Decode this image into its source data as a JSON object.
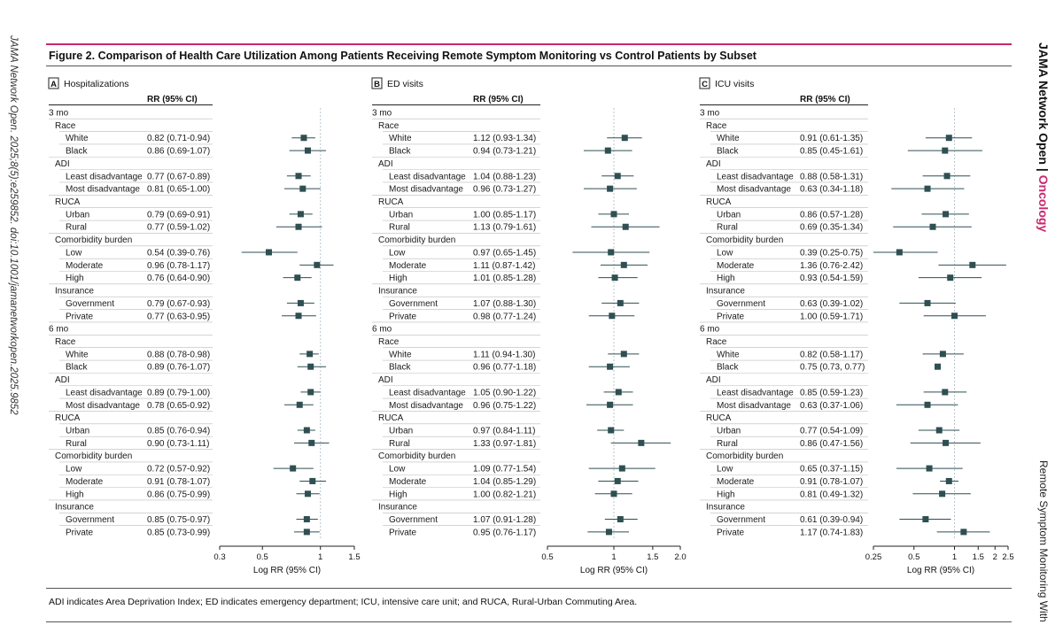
{
  "sidebar_left": "JAMA Network Open. 2025;8(5):e259852. doi:10.1001/jamanetworkopen.2025.9852",
  "sidebar_right": {
    "journal": "JAMA Network Open",
    "separator": "|",
    "section": "Oncology",
    "running_title": "Remote Symptom Monitoring With"
  },
  "figure_title": "Figure 2. Comparison of Health Care Utilization Among Patients Receiving Remote Symptom Monitoring vs Control Patients by Subset",
  "footnote": "ADI indicates Area Deprivation Index; ED indicates emergency department; ICU, intensive care unit; and RUCA, Rural-Urban Commuting Area.",
  "rows": [
    {
      "label": "3 mo",
      "level": 0
    },
    {
      "label": "Race",
      "level": 1
    },
    {
      "label": "White",
      "level": 2
    },
    {
      "label": "Black",
      "level": 2
    },
    {
      "label": "ADI",
      "level": 1
    },
    {
      "label": "Least disadvantage",
      "level": 2
    },
    {
      "label": "Most disadvantage",
      "level": 2
    },
    {
      "label": "RUCA",
      "level": 1
    },
    {
      "label": "Urban",
      "level": 2
    },
    {
      "label": "Rural",
      "level": 2
    },
    {
      "label": "Comorbidity burden",
      "level": 1
    },
    {
      "label": "Low",
      "level": 2
    },
    {
      "label": "Moderate",
      "level": 2
    },
    {
      "label": "High",
      "level": 2
    },
    {
      "label": "Insurance",
      "level": 1
    },
    {
      "label": "Government",
      "level": 2
    },
    {
      "label": "Private",
      "level": 2
    },
    {
      "label": "6 mo",
      "level": 0
    },
    {
      "label": "Race",
      "level": 1
    },
    {
      "label": "White",
      "level": 2
    },
    {
      "label": "Black",
      "level": 2
    },
    {
      "label": "ADI",
      "level": 1
    },
    {
      "label": "Least disadvantage",
      "level": 2
    },
    {
      "label": "Most disadvantage",
      "level": 2
    },
    {
      "label": "RUCA",
      "level": 1
    },
    {
      "label": "Urban",
      "level": 2
    },
    {
      "label": "Rural",
      "level": 2
    },
    {
      "label": "Comorbidity burden",
      "level": 1
    },
    {
      "label": "Low",
      "level": 2
    },
    {
      "label": "Moderate",
      "level": 2
    },
    {
      "label": "High",
      "level": 2
    },
    {
      "label": "Insurance",
      "level": 1
    },
    {
      "label": "Government",
      "level": 2
    },
    {
      "label": "Private",
      "level": 2
    }
  ],
  "chart_data": [
    {
      "type": "forest",
      "panel": "A",
      "title": "Hospitalizations",
      "column_header": "RR (95% CI)",
      "xlabel": "Log RR (95% CI)",
      "scale": "log",
      "xlim": [
        0.3,
        1.5
      ],
      "ticks": [
        0.3,
        0.5,
        1,
        1.5
      ],
      "tick_labels": [
        "0.3",
        "0.5",
        "1",
        "1.5"
      ],
      "reference": 1,
      "values": {
        "2": {
          "text": "0.82 (0.71-0.94)",
          "rr": 0.82,
          "lo": 0.71,
          "hi": 0.94
        },
        "3": {
          "text": "0.86 (0.69-1.07)",
          "rr": 0.86,
          "lo": 0.69,
          "hi": 1.07
        },
        "5": {
          "text": "0.77 (0.67-0.89)",
          "rr": 0.77,
          "lo": 0.67,
          "hi": 0.89
        },
        "6": {
          "text": "0.81 (0.65-1.00)",
          "rr": 0.81,
          "lo": 0.65,
          "hi": 1.0
        },
        "8": {
          "text": "0.79 (0.69-0.91)",
          "rr": 0.79,
          "lo": 0.69,
          "hi": 0.91
        },
        "9": {
          "text": "0.77 (0.59-1.02)",
          "rr": 0.77,
          "lo": 0.59,
          "hi": 1.02
        },
        "11": {
          "text": "0.54 (0.39-0.76)",
          "rr": 0.54,
          "lo": 0.39,
          "hi": 0.76
        },
        "12": {
          "text": "0.96 (0.78-1.17)",
          "rr": 0.96,
          "lo": 0.78,
          "hi": 1.17
        },
        "13": {
          "text": "0.76 (0.64-0.90)",
          "rr": 0.76,
          "lo": 0.64,
          "hi": 0.9
        },
        "15": {
          "text": "0.79 (0.67-0.93)",
          "rr": 0.79,
          "lo": 0.67,
          "hi": 0.93
        },
        "16": {
          "text": "0.77 (0.63-0.95)",
          "rr": 0.77,
          "lo": 0.63,
          "hi": 0.95
        },
        "19": {
          "text": "0.88 (0.78-0.98)",
          "rr": 0.88,
          "lo": 0.78,
          "hi": 0.98
        },
        "20": {
          "text": "0.89 (0.76-1.07)",
          "rr": 0.89,
          "lo": 0.76,
          "hi": 1.07
        },
        "22": {
          "text": "0.89 (0.79-1.00)",
          "rr": 0.89,
          "lo": 0.79,
          "hi": 1.0
        },
        "23": {
          "text": "0.78 (0.65-0.92)",
          "rr": 0.78,
          "lo": 0.65,
          "hi": 0.92
        },
        "25": {
          "text": "0.85 (0.76-0.94)",
          "rr": 0.85,
          "lo": 0.76,
          "hi": 0.94
        },
        "26": {
          "text": "0.90 (0.73-1.11)",
          "rr": 0.9,
          "lo": 0.73,
          "hi": 1.11
        },
        "28": {
          "text": "0.72 (0.57-0.92)",
          "rr": 0.72,
          "lo": 0.57,
          "hi": 0.92
        },
        "29": {
          "text": "0.91 (0.78-1.07)",
          "rr": 0.91,
          "lo": 0.78,
          "hi": 1.07
        },
        "30": {
          "text": "0.86 (0.75-0.99)",
          "rr": 0.86,
          "lo": 0.75,
          "hi": 0.99
        },
        "32": {
          "text": "0.85 (0.75-0.97)",
          "rr": 0.85,
          "lo": 0.75,
          "hi": 0.97
        },
        "33": {
          "text": "0.85 (0.73-0.99)",
          "rr": 0.85,
          "lo": 0.73,
          "hi": 0.99
        }
      }
    },
    {
      "type": "forest",
      "panel": "B",
      "title": "ED visits",
      "column_header": "RR (95% CI)",
      "xlabel": "Log RR (95% CI)",
      "scale": "log",
      "xlim": [
        0.5,
        2.0
      ],
      "ticks": [
        0.5,
        1,
        1.5,
        2.0
      ],
      "tick_labels": [
        "0.5",
        "1",
        "1.5",
        "2.0"
      ],
      "reference": 1,
      "values": {
        "2": {
          "text": "1.12 (0.93-1.34)",
          "rr": 1.12,
          "lo": 0.93,
          "hi": 1.34
        },
        "3": {
          "text": "0.94 (0.73-1.21)",
          "rr": 0.94,
          "lo": 0.73,
          "hi": 1.21
        },
        "5": {
          "text": "1.04 (0.88-1.23)",
          "rr": 1.04,
          "lo": 0.88,
          "hi": 1.23
        },
        "6": {
          "text": "0.96 (0.73-1.27)",
          "rr": 0.96,
          "lo": 0.73,
          "hi": 1.27
        },
        "8": {
          "text": "1.00 (0.85-1.17)",
          "rr": 1.0,
          "lo": 0.85,
          "hi": 1.17
        },
        "9": {
          "text": "1.13 (0.79-1.61)",
          "rr": 1.13,
          "lo": 0.79,
          "hi": 1.61
        },
        "11": {
          "text": "0.97 (0.65-1.45)",
          "rr": 0.97,
          "lo": 0.65,
          "hi": 1.45
        },
        "12": {
          "text": "1.11 (0.87-1.42)",
          "rr": 1.11,
          "lo": 0.87,
          "hi": 1.42
        },
        "13": {
          "text": "1.01 (0.85-1.28)",
          "rr": 1.01,
          "lo": 0.85,
          "hi": 1.28
        },
        "15": {
          "text": "1.07 (0.88-1.30)",
          "rr": 1.07,
          "lo": 0.88,
          "hi": 1.3
        },
        "16": {
          "text": "0.98 (0.77-1.24)",
          "rr": 0.98,
          "lo": 0.77,
          "hi": 1.24
        },
        "19": {
          "text": "1.11 (0.94-1.30)",
          "rr": 1.11,
          "lo": 0.94,
          "hi": 1.3
        },
        "20": {
          "text": "0.96 (0.77-1.18)",
          "rr": 0.96,
          "lo": 0.77,
          "hi": 1.18
        },
        "22": {
          "text": "1.05 (0.90-1.22)",
          "rr": 1.05,
          "lo": 0.9,
          "hi": 1.22
        },
        "23": {
          "text": "0.96 (0.75-1.22)",
          "rr": 0.96,
          "lo": 0.75,
          "hi": 1.22
        },
        "25": {
          "text": "0.97 (0.84-1.11)",
          "rr": 0.97,
          "lo": 0.84,
          "hi": 1.11
        },
        "26": {
          "text": "1.33 (0.97-1.81)",
          "rr": 1.33,
          "lo": 0.97,
          "hi": 1.81
        },
        "28": {
          "text": "1.09 (0.77-1.54)",
          "rr": 1.09,
          "lo": 0.77,
          "hi": 1.54
        },
        "29": {
          "text": "1.04 (0.85-1.29)",
          "rr": 1.04,
          "lo": 0.85,
          "hi": 1.29
        },
        "30": {
          "text": "1.00 (0.82-1.21)",
          "rr": 1.0,
          "lo": 0.82,
          "hi": 1.21
        },
        "32": {
          "text": "1.07 (0.91-1.28)",
          "rr": 1.07,
          "lo": 0.91,
          "hi": 1.28
        },
        "33": {
          "text": "0.95 (0.76-1.17)",
          "rr": 0.95,
          "lo": 0.76,
          "hi": 1.17
        }
      }
    },
    {
      "type": "forest",
      "panel": "C",
      "title": "ICU visits",
      "column_header": "RR (95% CI)",
      "xlabel": "Log RR (95% CI)",
      "scale": "log",
      "xlim": [
        0.25,
        2.5
      ],
      "ticks": [
        0.25,
        0.5,
        1,
        1.5,
        2,
        2.5
      ],
      "tick_labels": [
        "0.25",
        "0.5",
        "1",
        "1.5",
        "2",
        "2.5"
      ],
      "reference": 1,
      "values": {
        "2": {
          "text": "0.91 (0.61-1.35)",
          "rr": 0.91,
          "lo": 0.61,
          "hi": 1.35
        },
        "3": {
          "text": "0.85 (0.45-1.61)",
          "rr": 0.85,
          "lo": 0.45,
          "hi": 1.61
        },
        "5": {
          "text": "0.88 (0.58-1.31)",
          "rr": 0.88,
          "lo": 0.58,
          "hi": 1.31
        },
        "6": {
          "text": "0.63 (0.34-1.18)",
          "rr": 0.63,
          "lo": 0.34,
          "hi": 1.18
        },
        "8": {
          "text": "0.86 (0.57-1.28)",
          "rr": 0.86,
          "lo": 0.57,
          "hi": 1.28
        },
        "9": {
          "text": "0.69 (0.35-1.34)",
          "rr": 0.69,
          "lo": 0.35,
          "hi": 1.34
        },
        "11": {
          "text": "0.39 (0.25-0.75)",
          "rr": 0.39,
          "lo": 0.25,
          "hi": 0.75
        },
        "12": {
          "text": "1.36 (0.76-2.42)",
          "rr": 1.36,
          "lo": 0.76,
          "hi": 2.42
        },
        "13": {
          "text": "0.93 (0.54-1.59)",
          "rr": 0.93,
          "lo": 0.54,
          "hi": 1.59
        },
        "15": {
          "text": "0.63 (0.39-1.02)",
          "rr": 0.63,
          "lo": 0.39,
          "hi": 1.02
        },
        "16": {
          "text": "1.00 (0.59-1.71)",
          "rr": 1.0,
          "lo": 0.59,
          "hi": 1.71
        },
        "19": {
          "text": "0.82 (0.58-1.17)",
          "rr": 0.82,
          "lo": 0.58,
          "hi": 1.17
        },
        "20": {
          "text": "0.75 (0.73, 0.77)",
          "rr": 0.75,
          "lo": 0.73,
          "hi": 0.77
        },
        "22": {
          "text": "0.85 (0.59-1.23)",
          "rr": 0.85,
          "lo": 0.59,
          "hi": 1.23
        },
        "23": {
          "text": "0.63 (0.37-1.06)",
          "rr": 0.63,
          "lo": 0.37,
          "hi": 1.06
        },
        "25": {
          "text": "0.77 (0.54-1.09)",
          "rr": 0.77,
          "lo": 0.54,
          "hi": 1.09
        },
        "26": {
          "text": "0.86 (0.47-1.56)",
          "rr": 0.86,
          "lo": 0.47,
          "hi": 1.56
        },
        "28": {
          "text": "0.65 (0.37-1.15)",
          "rr": 0.65,
          "lo": 0.37,
          "hi": 1.15
        },
        "29": {
          "text": "0.91 (0.78-1.07)",
          "rr": 0.91,
          "lo": 0.78,
          "hi": 1.07
        },
        "30": {
          "text": "0.81 (0.49-1.32)",
          "rr": 0.81,
          "lo": 0.49,
          "hi": 1.32
        },
        "32": {
          "text": "0.61 (0.39-0.94)",
          "rr": 0.61,
          "lo": 0.39,
          "hi": 0.94
        },
        "33": {
          "text": "1.17 (0.74-1.83)",
          "rr": 1.17,
          "lo": 0.74,
          "hi": 1.83
        }
      }
    }
  ],
  "colors": {
    "accent": "#c8286e",
    "marker": "#2f4f52",
    "text": "#1a1a1a",
    "rule": "#555555",
    "separator": "#bbbbbb",
    "reference": "#b9c6cf"
  }
}
